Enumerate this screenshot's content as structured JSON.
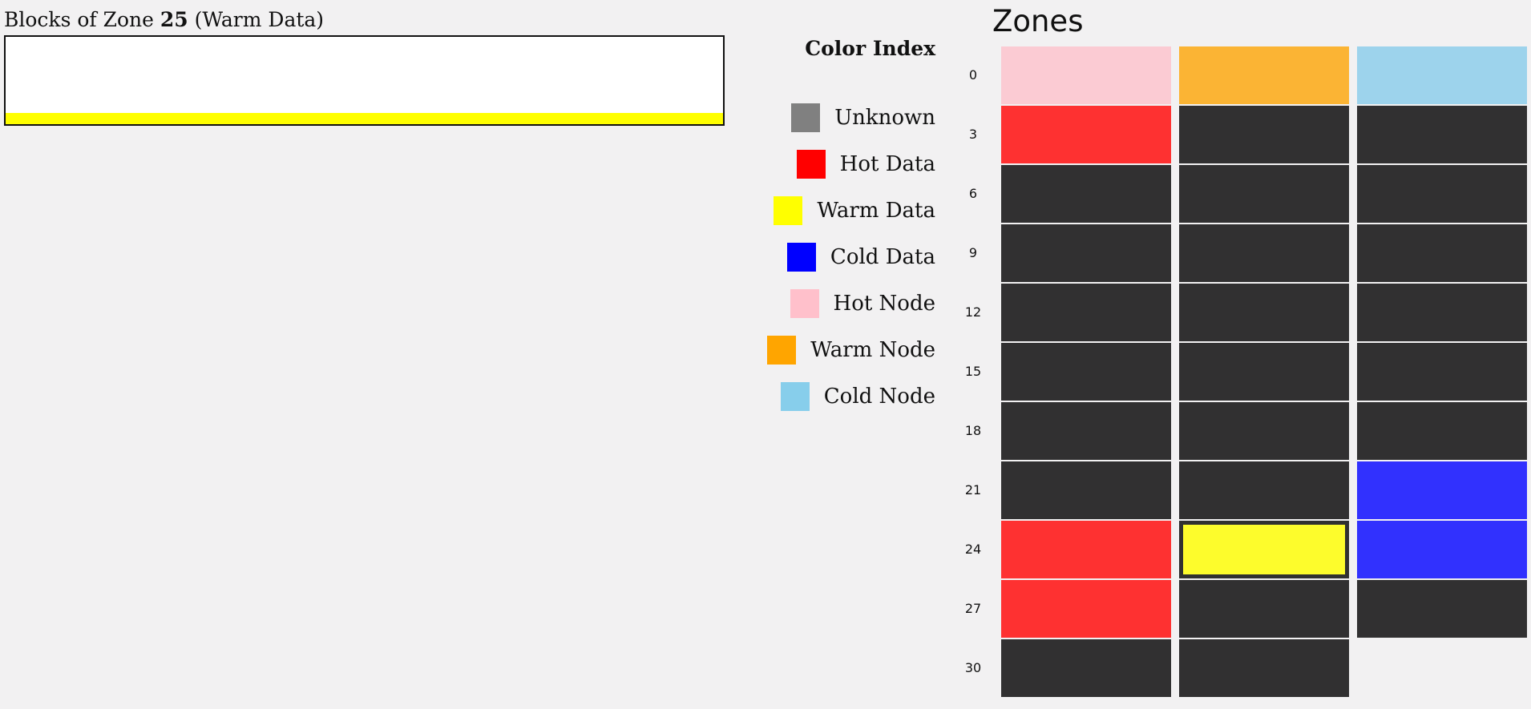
{
  "blocks_panel": {
    "title_prefix": "Blocks of Zone",
    "zone_number": "25",
    "zone_type_label": "(Warm Data)",
    "fill_color": "#ffff00"
  },
  "legend": {
    "title": "Color Index",
    "items": [
      {
        "label": "Unknown",
        "color": "#808080"
      },
      {
        "label": "Hot Data",
        "color": "#ff0000"
      },
      {
        "label": "Warm Data",
        "color": "#ffff00"
      },
      {
        "label": "Cold Data",
        "color": "#0000ff"
      },
      {
        "label": "Hot Node",
        "color": "#ffc0cb"
      },
      {
        "label": "Warm Node",
        "color": "#ffa500"
      },
      {
        "label": "Cold Node",
        "color": "#87ceeb"
      }
    ]
  },
  "zones": {
    "title": "Zones",
    "row_labels": [
      "0",
      "3",
      "6",
      "9",
      "12",
      "15",
      "18",
      "21",
      "24",
      "27",
      "30"
    ],
    "colors": {
      "hot_node": "#fbcbd3",
      "warm_node": "#fbb434",
      "cold_node": "#9dd3ec",
      "hot_data": "#fe3131",
      "warm_data": "#fdfc2c",
      "cold_data": "#3131fe",
      "empty": "#313031"
    },
    "selected_zone": 25,
    "cells": [
      "hot_node",
      "warm_node",
      "cold_node",
      "hot_data",
      "empty",
      "empty",
      "empty",
      "empty",
      "empty",
      "empty",
      "empty",
      "empty",
      "empty",
      "empty",
      "empty",
      "empty",
      "empty",
      "empty",
      "empty",
      "empty",
      "empty",
      "empty",
      "empty",
      "cold_data",
      "hot_data",
      "warm_data",
      "cold_data",
      "hot_data",
      "empty",
      "empty",
      "empty",
      "empty"
    ]
  }
}
